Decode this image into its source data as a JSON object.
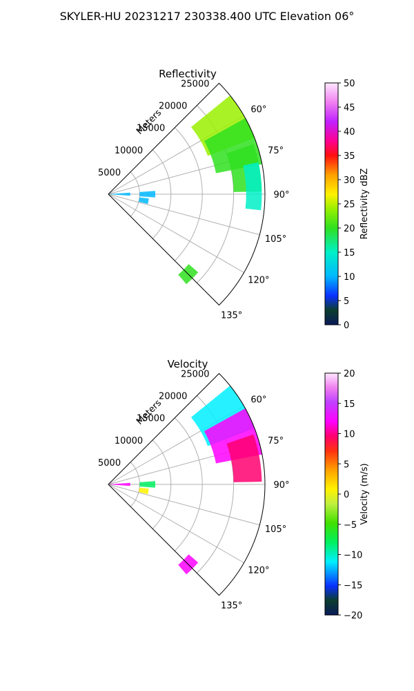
{
  "figure": {
    "title": "SKYLER-HU  20231217  230338.400 UTC Elevation 06°"
  },
  "chart_data": [
    {
      "type": "polar-sector",
      "title": "Reflectivity",
      "radial_label": "Meters",
      "radial_ticks": [
        5000,
        10000,
        15000,
        20000,
        25000
      ],
      "rlim": [
        0,
        25000
      ],
      "angle_ticks": [
        "60°",
        "75°",
        "90°",
        "105°",
        "120°",
        "135°"
      ],
      "theta_range_deg": [
        45,
        135
      ],
      "grid": true,
      "colorbar": {
        "label": "Reflectivity dBZ",
        "ticks": [
          0,
          5,
          10,
          15,
          20,
          25,
          30,
          35,
          40,
          45,
          50
        ],
        "range": [
          0,
          50
        ]
      },
      "echoes": [
        {
          "az": 60,
          "r0": 17000,
          "r1": 25000,
          "value": 25
        },
        {
          "az": 70,
          "r0": 17500,
          "r1": 25000,
          "value": 20
        },
        {
          "az": 80,
          "r0": 20000,
          "r1": 24500,
          "value": 20
        },
        {
          "az": 87,
          "r0": 22000,
          "r1": 24500,
          "value": 18
        },
        {
          "az": 90,
          "r0": 0,
          "r1": 3500,
          "value": 14
        },
        {
          "az": 90,
          "r0": 5000,
          "r1": 7500,
          "value": 12
        },
        {
          "az": 100,
          "r0": 5000,
          "r1": 6500,
          "value": 10
        },
        {
          "az": 135,
          "r0": 17000,
          "r1": 19000,
          "value": 20
        }
      ]
    },
    {
      "type": "polar-sector",
      "title": "Velocity",
      "radial_label": "Meters",
      "radial_ticks": [
        5000,
        10000,
        15000,
        20000,
        25000
      ],
      "rlim": [
        0,
        25000
      ],
      "angle_ticks": [
        "60°",
        "75°",
        "90°",
        "105°",
        "120°",
        "135°"
      ],
      "theta_range_deg": [
        45,
        135
      ],
      "grid": true,
      "colorbar": {
        "label": "Velocity (m/s)",
        "ticks": [
          -20,
          -15,
          -10,
          -5,
          0,
          5,
          10,
          15,
          20
        ],
        "range": [
          -20,
          20
        ]
      },
      "echoes": [
        {
          "az": 60,
          "r0": 17000,
          "r1": 25000,
          "value": -12
        },
        {
          "az": 70,
          "r0": 17500,
          "r1": 25000,
          "value": 14
        },
        {
          "az": 80,
          "r0": 20000,
          "r1": 24500,
          "value": 9
        },
        {
          "az": 90,
          "r0": 0,
          "r1": 3500,
          "value": 12
        },
        {
          "az": 90,
          "r0": 5000,
          "r1": 7500,
          "value": -8
        },
        {
          "az": 100,
          "r0": 5000,
          "r1": 6500,
          "value": 2
        },
        {
          "az": 135,
          "r0": 17000,
          "r1": 19000,
          "value": 12
        }
      ]
    }
  ]
}
